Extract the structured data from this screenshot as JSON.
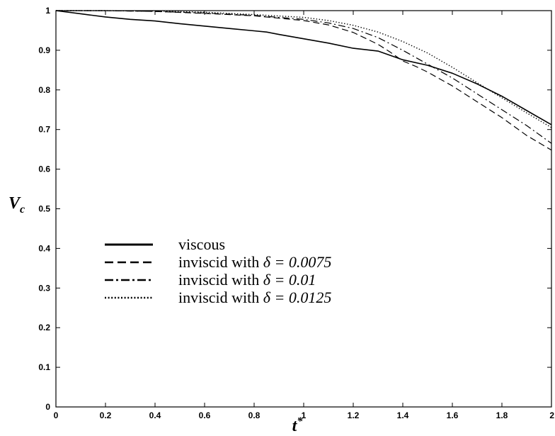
{
  "chart_data": {
    "type": "line",
    "xlabel_main": "t",
    "xlabel_sup": "*",
    "ylabel_main": "V",
    "ylabel_sub": "c",
    "xlim": [
      0,
      2
    ],
    "ylim": [
      0,
      1
    ],
    "xticks": [
      0,
      0.2,
      0.4,
      0.6,
      0.8,
      1,
      1.2,
      1.4,
      1.6,
      1.8,
      2
    ],
    "yticks": [
      0,
      0.1,
      0.2,
      0.3,
      0.4,
      0.5,
      0.6,
      0.7,
      0.8,
      0.9,
      1
    ],
    "xtick_labels": [
      "0",
      "0.2",
      "0.4",
      "0.6",
      "0.8",
      "1",
      "1.2",
      "1.4",
      "1.6",
      "1.8",
      "2"
    ],
    "ytick_labels": [
      "0",
      "0.1",
      "0.2",
      "0.3",
      "0.4",
      "0.5",
      "0.6",
      "0.7",
      "0.8",
      "0.9",
      "1"
    ],
    "grid": false,
    "legend_position": "lower-left",
    "series": [
      {
        "name": "viscous",
        "legend_prefix": "viscous",
        "legend_math": "",
        "style": "solid",
        "x": [
          0,
          0.1,
          0.2,
          0.3,
          0.4,
          0.5,
          0.6,
          0.7,
          0.8,
          0.85,
          0.9,
          1.0,
          1.1,
          1.2,
          1.3,
          1.4,
          1.5,
          1.6,
          1.7,
          1.8,
          1.9,
          2.0
        ],
        "y": [
          1.0,
          0.992,
          0.984,
          0.978,
          0.974,
          0.967,
          0.961,
          0.955,
          0.949,
          0.946,
          0.94,
          0.929,
          0.918,
          0.905,
          0.898,
          0.876,
          0.862,
          0.842,
          0.815,
          0.784,
          0.748,
          0.712
        ]
      },
      {
        "name": "inviscid with δ = 0.0075",
        "legend_prefix": "inviscid with ",
        "legend_math": "δ = 0.0075",
        "style": "dashed",
        "x": [
          0,
          0.2,
          0.4,
          0.6,
          0.8,
          1.0,
          1.1,
          1.2,
          1.3,
          1.35,
          1.4,
          1.45,
          1.5,
          1.6,
          1.7,
          1.8,
          1.9,
          2.0
        ],
        "y": [
          1.0,
          1.0,
          0.998,
          0.993,
          0.987,
          0.975,
          0.964,
          0.945,
          0.915,
          0.895,
          0.873,
          0.86,
          0.845,
          0.81,
          0.77,
          0.73,
          0.685,
          0.648
        ]
      },
      {
        "name": "inviscid with δ = 0.01",
        "legend_prefix": "inviscid with ",
        "legend_math": "δ = 0.01",
        "style": "dashdot",
        "x": [
          0,
          0.2,
          0.4,
          0.6,
          0.8,
          1.0,
          1.1,
          1.2,
          1.3,
          1.4,
          1.5,
          1.6,
          1.7,
          1.8,
          1.9,
          2.0
        ],
        "y": [
          1.0,
          1.0,
          0.998,
          0.994,
          0.988,
          0.978,
          0.969,
          0.955,
          0.932,
          0.9,
          0.865,
          0.83,
          0.79,
          0.75,
          0.71,
          0.665
        ]
      },
      {
        "name": "inviscid with δ = 0.0125",
        "legend_prefix": "inviscid with ",
        "legend_math": "δ = 0.0125",
        "style": "dotted",
        "x": [
          0,
          0.2,
          0.4,
          0.6,
          0.8,
          1.0,
          1.1,
          1.2,
          1.3,
          1.4,
          1.5,
          1.6,
          1.7,
          1.8,
          1.9,
          2.0
        ],
        "y": [
          1.0,
          1.0,
          0.999,
          0.996,
          0.99,
          0.983,
          0.975,
          0.963,
          0.946,
          0.922,
          0.893,
          0.857,
          0.818,
          0.78,
          0.742,
          0.705
        ]
      }
    ]
  }
}
